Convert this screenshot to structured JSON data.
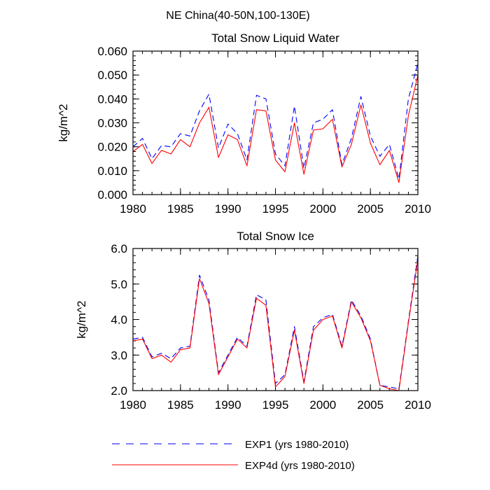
{
  "figure": {
    "suptitle": "NE China(40-50N,100-130E)"
  },
  "legend": {
    "placement": "bottom",
    "entries": [
      {
        "label": "EXP1 (yrs 1980-2010)",
        "color": "#0000ff",
        "style": "dashed"
      },
      {
        "label": "EXP4d (yrs 1980-2010)",
        "color": "#ff0000",
        "style": "solid"
      }
    ]
  },
  "chart_data": [
    {
      "type": "line",
      "title": "Total Snow Liquid Water",
      "xlabel": "",
      "ylabel": "kg/m^2",
      "xlim": [
        1980,
        2010
      ],
      "ylim": [
        0.0,
        0.06
      ],
      "xticks": [
        1980,
        1985,
        1990,
        1995,
        2000,
        2005,
        2010
      ],
      "xtick_labels": [
        "1980",
        "1985",
        "1990",
        "1995",
        "2000",
        "2005",
        "2010"
      ],
      "yticks": [
        0.0,
        0.01,
        0.02,
        0.03,
        0.04,
        0.05,
        0.06
      ],
      "ytick_labels": [
        "0.000",
        "0.010",
        "0.020",
        "0.030",
        "0.040",
        "0.050",
        "0.060"
      ],
      "grid": false,
      "x": [
        1980,
        1981,
        1982,
        1983,
        1984,
        1985,
        1986,
        1987,
        1988,
        1989,
        1990,
        1991,
        1992,
        1993,
        1994,
        1995,
        1996,
        1997,
        1998,
        1999,
        2000,
        2001,
        2002,
        2003,
        2004,
        2005,
        2006,
        2007,
        2008,
        2009,
        2010
      ],
      "series": [
        {
          "name": "EXP1 (yrs 1980-2010)",
          "color": "#0000ff",
          "style": "dashed",
          "values": [
            0.02,
            0.0235,
            0.015,
            0.0205,
            0.02,
            0.0255,
            0.0245,
            0.035,
            0.042,
            0.0195,
            0.0295,
            0.0255,
            0.0145,
            0.0415,
            0.04,
            0.017,
            0.012,
            0.037,
            0.011,
            0.03,
            0.0315,
            0.0355,
            0.0125,
            0.0235,
            0.041,
            0.0245,
            0.016,
            0.021,
            0.0065,
            0.04,
            0.055
          ]
        },
        {
          "name": "EXP4d (yrs 1980-2010)",
          "color": "#ff0000",
          "style": "solid",
          "values": [
            0.018,
            0.021,
            0.013,
            0.0185,
            0.017,
            0.023,
            0.02,
            0.03,
            0.0365,
            0.0155,
            0.025,
            0.023,
            0.012,
            0.0355,
            0.035,
            0.0145,
            0.0095,
            0.03,
            0.0085,
            0.027,
            0.0275,
            0.0315,
            0.0115,
            0.021,
            0.0375,
            0.0215,
            0.0125,
            0.0185,
            0.005,
            0.033,
            0.05
          ]
        }
      ]
    },
    {
      "type": "line",
      "title": "Total Snow Ice",
      "xlabel": "",
      "ylabel": "kg/m^2",
      "xlim": [
        1980,
        2010
      ],
      "ylim": [
        2.0,
        6.0
      ],
      "xticks": [
        1980,
        1985,
        1990,
        1995,
        2000,
        2005,
        2010
      ],
      "xtick_labels": [
        "1980",
        "1985",
        "1990",
        "1995",
        "2000",
        "2005",
        "2010"
      ],
      "yticks": [
        2.0,
        3.0,
        4.0,
        5.0,
        6.0
      ],
      "ytick_labels": [
        "2.0",
        "3.0",
        "4.0",
        "5.0",
        "6.0"
      ],
      "grid": false,
      "x": [
        1980,
        1981,
        1982,
        1983,
        1984,
        1985,
        1986,
        1987,
        1988,
        1989,
        1990,
        1991,
        1992,
        1993,
        1994,
        1995,
        1996,
        1997,
        1998,
        1999,
        2000,
        2001,
        2002,
        2003,
        2004,
        2005,
        2006,
        2007,
        2008,
        2009,
        2010
      ],
      "series": [
        {
          "name": "EXP1 (yrs 1980-2010)",
          "color": "#0000ff",
          "style": "dashed",
          "values": [
            3.45,
            3.5,
            2.95,
            3.05,
            2.9,
            3.2,
            3.25,
            5.25,
            4.55,
            2.5,
            3.0,
            3.5,
            3.25,
            4.7,
            4.55,
            2.2,
            2.45,
            3.8,
            2.25,
            3.8,
            4.05,
            4.15,
            3.25,
            4.55,
            4.1,
            3.45,
            2.15,
            2.1,
            2.05,
            3.95,
            5.8
          ]
        },
        {
          "name": "EXP4d (yrs 1980-2010)",
          "color": "#ff0000",
          "style": "solid",
          "values": [
            3.4,
            3.45,
            2.9,
            3.0,
            2.8,
            3.15,
            3.2,
            5.15,
            4.45,
            2.45,
            2.95,
            3.45,
            3.2,
            4.6,
            4.4,
            2.1,
            2.4,
            3.7,
            2.2,
            3.7,
            4.0,
            4.1,
            3.2,
            4.5,
            4.05,
            3.4,
            2.15,
            2.05,
            2.0,
            3.9,
            5.7
          ]
        }
      ]
    }
  ]
}
